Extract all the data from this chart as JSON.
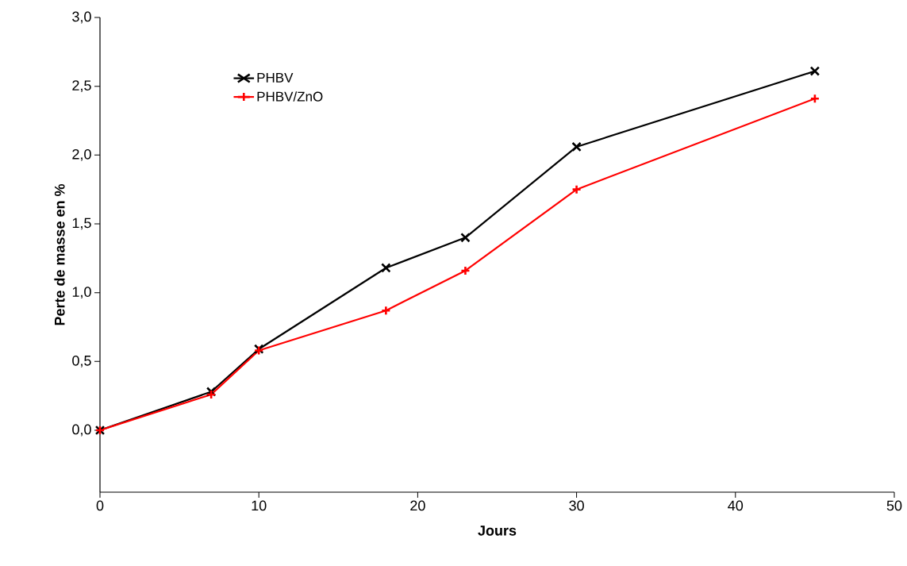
{
  "chart_data": {
    "type": "line",
    "xlabel": "Jours",
    "ylabel": "Perte de masse en %",
    "x": [
      0,
      7,
      10,
      18,
      23,
      30,
      45
    ],
    "series": [
      {
        "name": "PHBV",
        "color": "#000000",
        "marker": "cross",
        "values": [
          0.0,
          0.28,
          0.59,
          1.18,
          1.4,
          2.06,
          2.61
        ]
      },
      {
        "name": "PHBV/ZnO",
        "color": "#ff0000",
        "marker": "plus",
        "values": [
          0.0,
          0.26,
          0.58,
          0.87,
          1.16,
          1.75,
          2.41
        ]
      }
    ],
    "xlim": [
      0,
      50
    ],
    "xticks": [
      0,
      10,
      20,
      30,
      40,
      50
    ],
    "ylim": [
      -0.45,
      3.0
    ],
    "yticks": [
      {
        "value": 0,
        "label": "0,0"
      },
      {
        "value": 0.5,
        "label": "0,5"
      },
      {
        "value": 1.0,
        "label": "1,0"
      },
      {
        "value": 1.5,
        "label": "1,5"
      },
      {
        "value": 2.0,
        "label": "2,0"
      },
      {
        "value": 2.5,
        "label": "2,5"
      },
      {
        "value": 3.0,
        "label": "3,0"
      }
    ],
    "grid": false,
    "legend": "top left",
    "line_style": "solid"
  }
}
